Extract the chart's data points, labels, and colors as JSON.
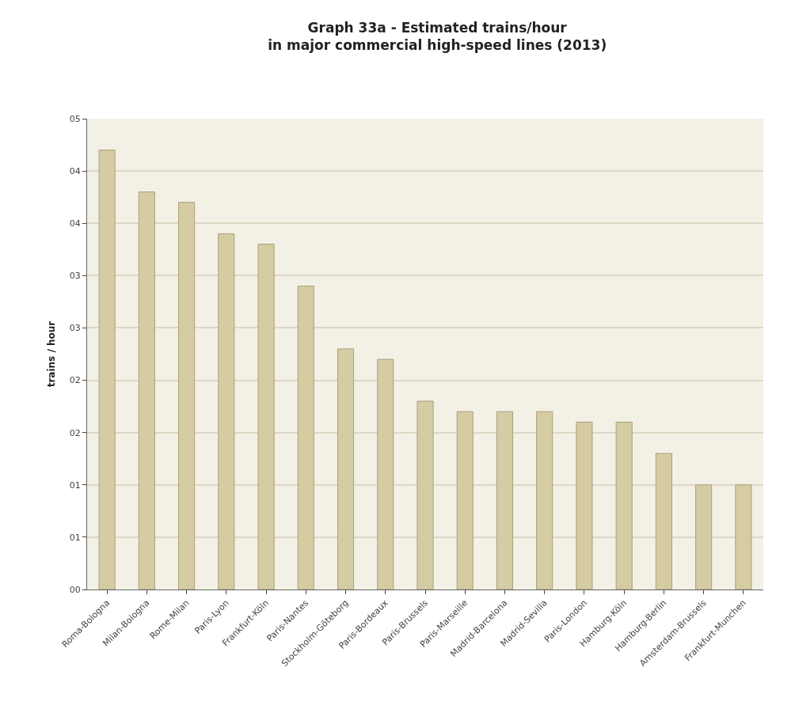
{
  "chart_data": {
    "type": "bar",
    "title": "Graph 33a - Estimated trains/hour\nin major commercial high-speed lines (2013)",
    "ylabel": "trains / hour",
    "categories": [
      "Roma-Bologna",
      "Milan-Bologna",
      "Rome-Milan",
      "Paris-Lyon",
      "Frankfurt-Köln",
      "Paris-Nantes",
      "Stockholm-Göteborg",
      "Paris-Bordeaux",
      "Paris-Brussels",
      "Paris-Marseille",
      "Madrid-Barcelona",
      "Madrid-Sevilla",
      "Paris-London",
      "Hamburg-Köln",
      "Hamburg-Berlin",
      "Amsterdam-Brussels",
      "Frankfurt-Munchen"
    ],
    "values": [
      4.2,
      3.8,
      3.7,
      3.4,
      3.3,
      2.9,
      2.3,
      2.2,
      1.8,
      1.7,
      1.7,
      1.7,
      1.6,
      1.6,
      1.3,
      1.0,
      1.0
    ],
    "color": "#d6cca3",
    "ylim": [
      0,
      4.5
    ],
    "yticks": [
      {
        "value": 0,
        "label": "00"
      },
      {
        "value": 0.5,
        "label": "01"
      },
      {
        "value": 1,
        "label": "01"
      },
      {
        "value": 1.5,
        "label": "02"
      },
      {
        "value": 2,
        "label": "02"
      },
      {
        "value": 2.5,
        "label": "03"
      },
      {
        "value": 3,
        "label": "03"
      },
      {
        "value": 3.5,
        "label": "04"
      },
      {
        "value": 4,
        "label": "04"
      },
      {
        "value": 4.5,
        "label": "05"
      }
    ],
    "grid": "y"
  }
}
